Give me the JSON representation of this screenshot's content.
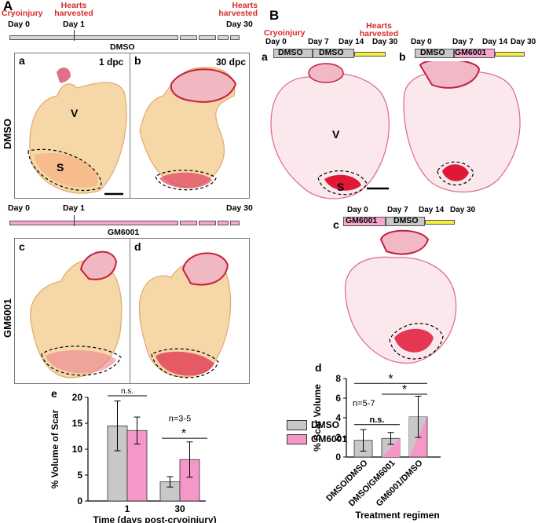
{
  "panelA": {
    "letter": "A",
    "timeline_top": {
      "cryo_label": "Cryoinjury",
      "harvest_label_1": "Hearts harvested",
      "harvest_label_2": "Hearts harvested",
      "day0": "Day 0",
      "day1": "Day 1",
      "day30": "Day 30",
      "drug": "DMSO"
    },
    "timeline_mid": {
      "day0": "Day 0",
      "day1": "Day 1",
      "day30": "Day 30",
      "drug": "GM6001"
    },
    "row1_label": "DMSO",
    "row2_label": "GM6001",
    "sub_a": "a",
    "sub_b": "b",
    "sub_c": "c",
    "sub_d": "d",
    "dpc1": "1 dpc",
    "dpc30": "30 dpc",
    "V": "V",
    "S": "S"
  },
  "panelB": {
    "letter": "B",
    "cryo_label": "Cryoinjury",
    "harvest_label": "Hearts harvested",
    "a": {
      "sub": "a",
      "days": [
        "Day 0",
        "Day 7",
        "Day 14",
        "Day 30"
      ],
      "drug1": "DMSO",
      "drug2": "DMSO"
    },
    "b": {
      "sub": "b",
      "days": [
        "Day 0",
        "Day 7",
        "Day 14",
        "Day 30"
      ],
      "drug1": "DMSO",
      "drug2": "GM6001"
    },
    "c": {
      "sub": "c",
      "days": [
        "Day 0",
        "Day 7",
        "Day 14",
        "Day 30"
      ],
      "drug1": "GM6001",
      "drug2": "DMSO"
    },
    "V": "V",
    "S": "S"
  },
  "colors": {
    "dmso_gray": "#c8c8c8",
    "gm_pink": "#f598c8",
    "yellow": "#f4ef3a",
    "red": "#d9292b"
  },
  "legend": {
    "dmso": "DMSO",
    "gm": "GM6001"
  },
  "chart_data": [
    {
      "panel": "e",
      "type": "bar",
      "ylabel": "% Volume of Scar",
      "xlabel": "Time (days post-cryoinjury)",
      "categories": [
        "1",
        "30"
      ],
      "series": [
        {
          "name": "DMSO",
          "values": [
            14.5,
            3.7
          ],
          "errors": [
            4.8,
            1.0
          ]
        },
        {
          "name": "GM6001",
          "values": [
            13.6,
            8.0
          ],
          "errors": [
            2.6,
            3.4
          ]
        }
      ],
      "ylim": [
        0,
        20
      ],
      "yticks": [
        "0",
        "5",
        "10",
        "15",
        "20"
      ],
      "annotations": [
        "n.s.",
        "*",
        "n=3-5"
      ]
    },
    {
      "panel": "d",
      "type": "bar",
      "ylabel": "% Scar Volume",
      "xlabel": "Treatment regimen",
      "categories": [
        "DMSO/DMSO",
        "DMSO/GM6001",
        "GM6001/DMSO"
      ],
      "values": [
        1.7,
        1.9,
        4.1
      ],
      "errors": [
        1.1,
        0.6,
        2.1
      ],
      "ylim": [
        0,
        8
      ],
      "yticks": [
        "0",
        "2",
        "4",
        "6",
        "8"
      ],
      "annotations": [
        "n.s.",
        "*",
        "*",
        "n=5-7"
      ]
    }
  ]
}
